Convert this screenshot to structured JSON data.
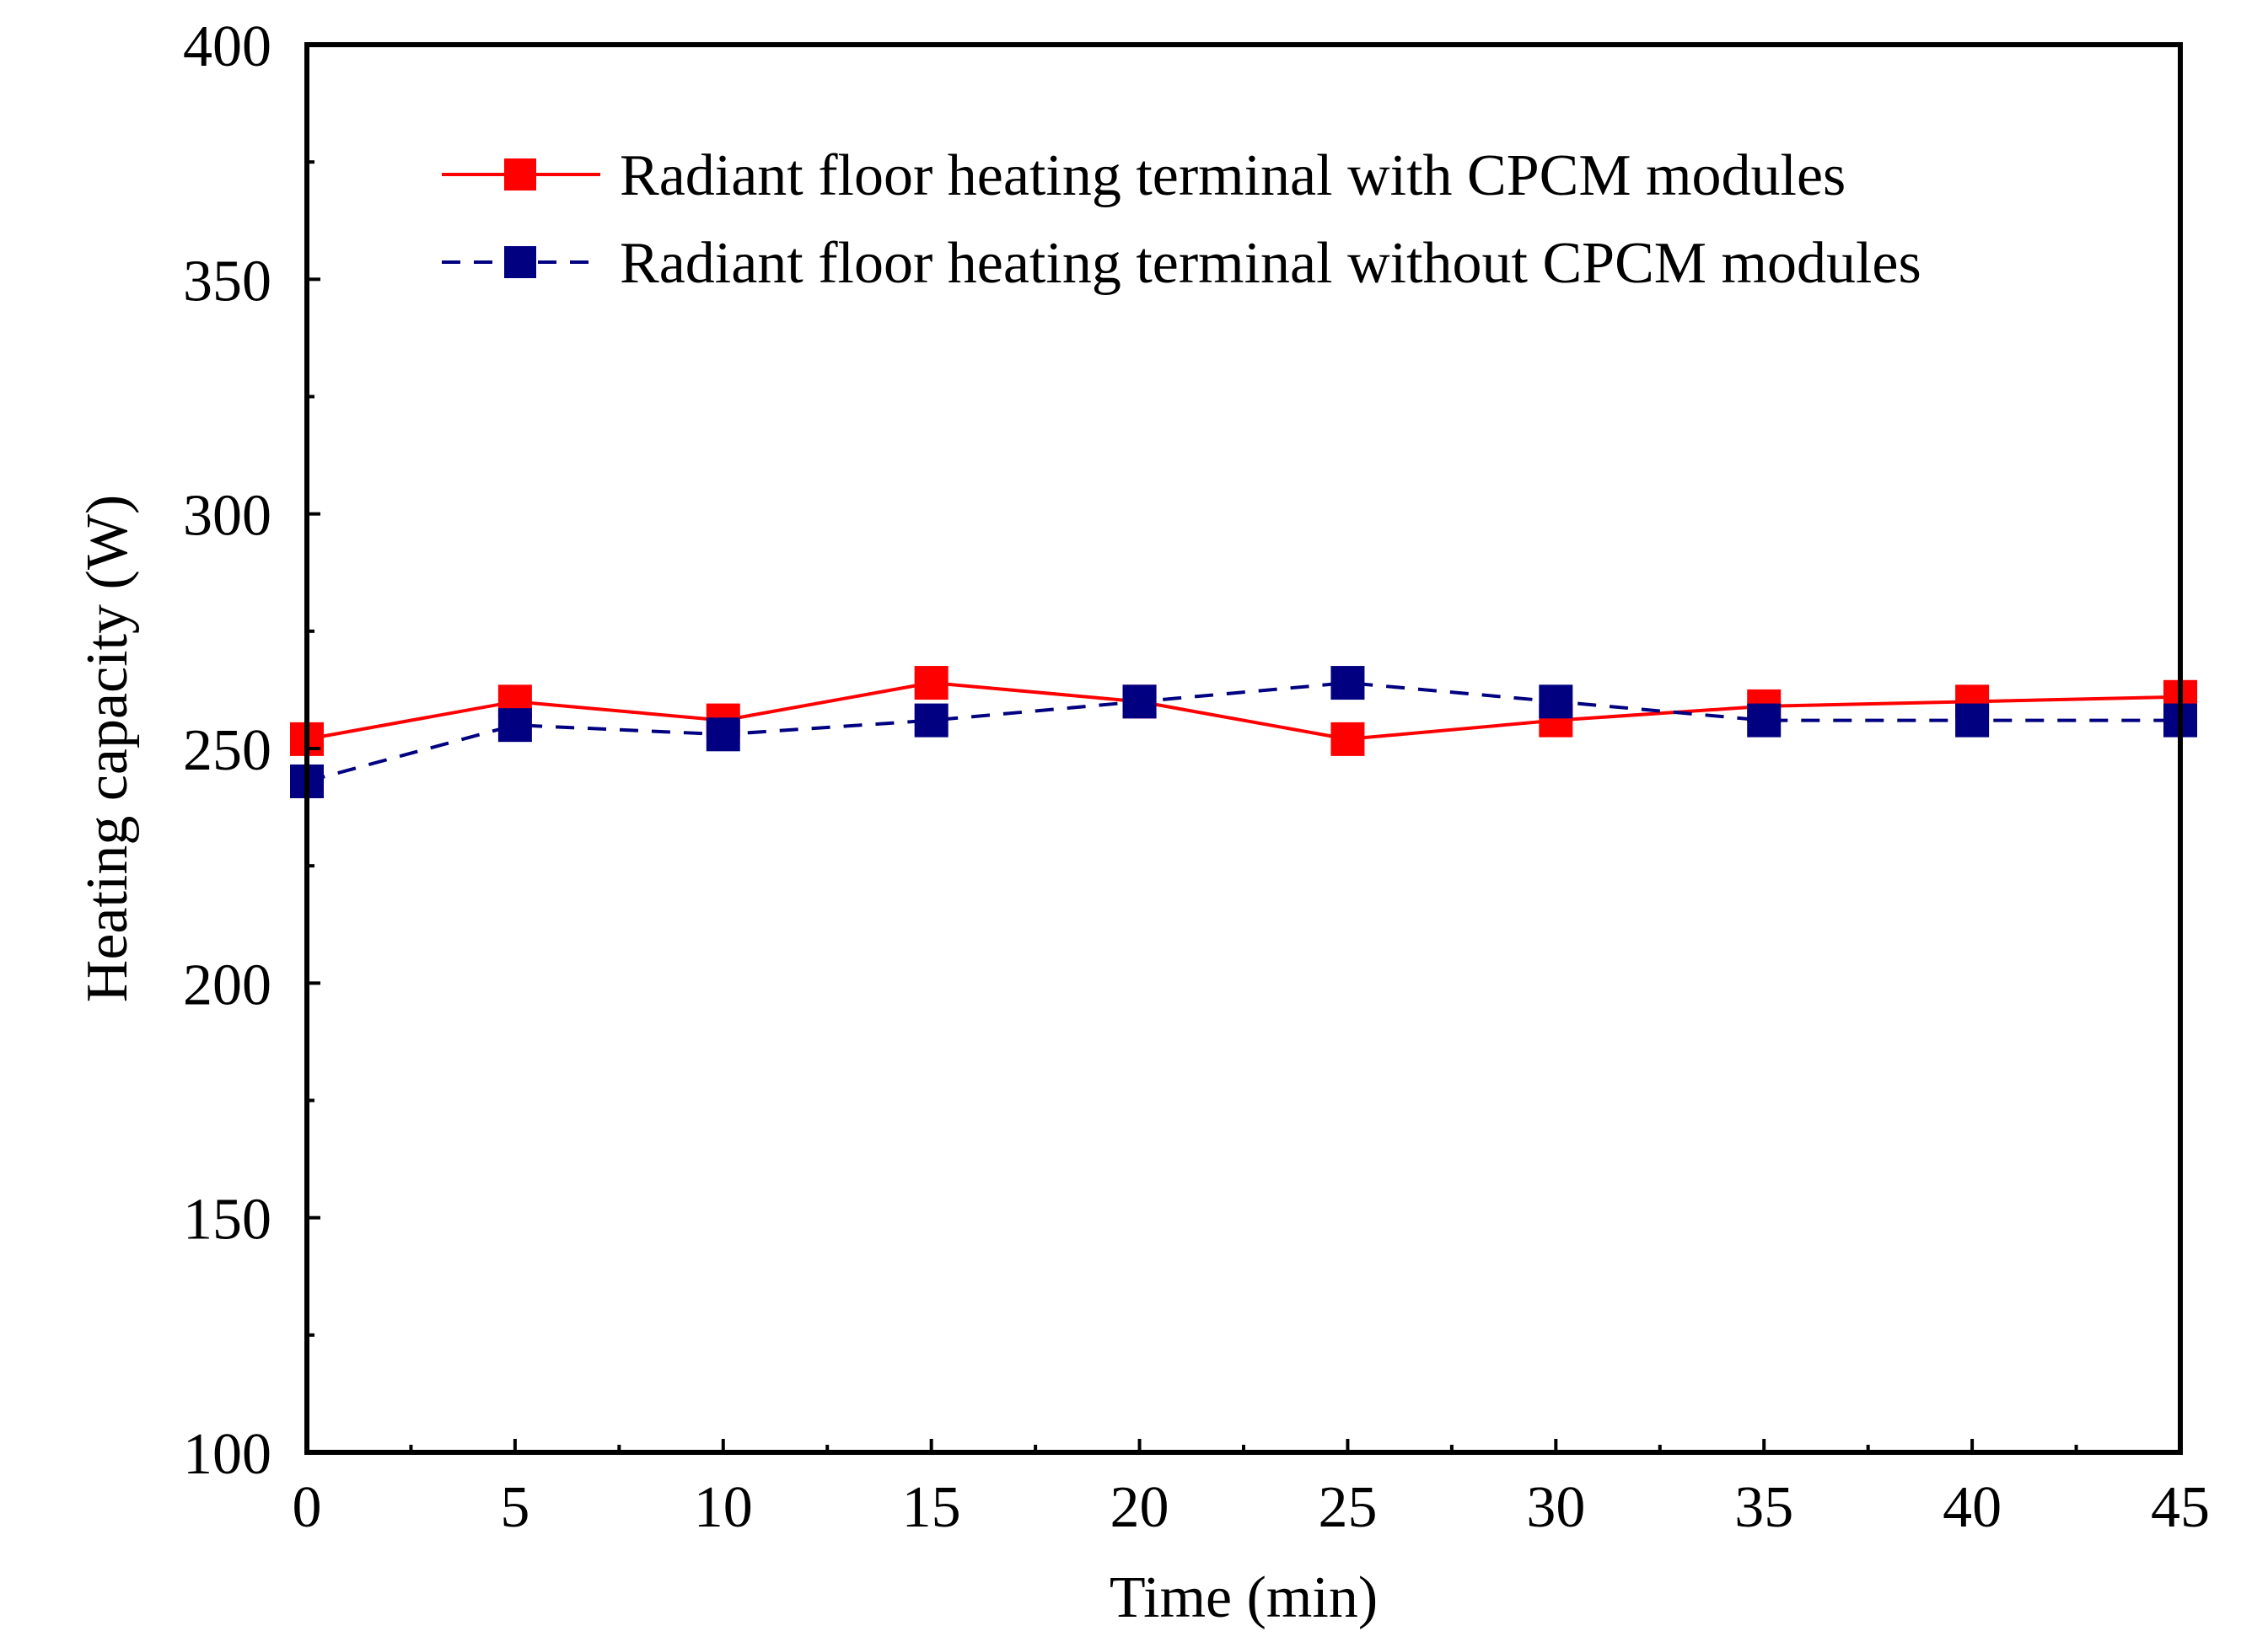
{
  "chart_data": {
    "type": "line",
    "title": "",
    "xlabel": "Time (min)",
    "ylabel": "Heating capacity (W)",
    "xlim": [
      0,
      45
    ],
    "ylim": [
      100,
      400
    ],
    "xticks": [
      0,
      5,
      10,
      15,
      20,
      25,
      30,
      35,
      40,
      45
    ],
    "yticks": [
      100,
      150,
      200,
      250,
      300,
      350,
      400
    ],
    "xtick_labels": [
      "0",
      "5",
      "10",
      "15",
      "20",
      "25",
      "30",
      "35",
      "40",
      "45"
    ],
    "ytick_labels": [
      "100",
      "150",
      "200",
      "250",
      "300",
      "350",
      "400"
    ],
    "grid": false,
    "legend_position": "top-right",
    "x": [
      0,
      5,
      10,
      15,
      20,
      25,
      30,
      35,
      40,
      45
    ],
    "series": [
      {
        "name": "Radiant floor heating terminal with CPCM modules",
        "values": [
          252,
          260,
          256,
          264,
          260,
          252,
          256,
          259,
          260,
          261
        ],
        "color": "#ff0000",
        "line_style": "solid",
        "marker": "square"
      },
      {
        "name": "Radiant floor heating terminal without CPCM modules",
        "values": [
          243,
          255,
          253,
          256,
          260,
          264,
          260,
          256,
          256,
          256
        ],
        "color": "#000080",
        "line_style": "dashed",
        "marker": "square"
      }
    ]
  }
}
